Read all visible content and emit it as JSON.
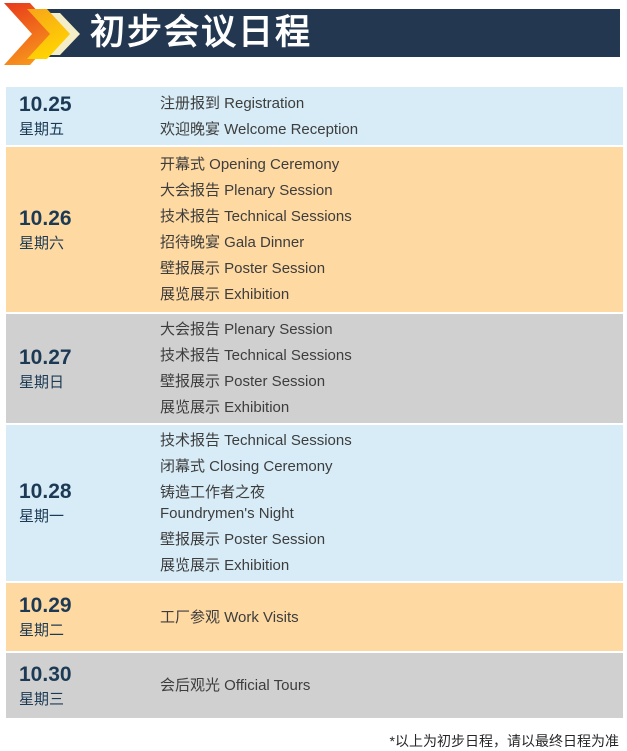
{
  "header": {
    "title": "初步会议日程"
  },
  "schedule": {
    "rows": [
      {
        "date": "10.25",
        "weekday": "星期五",
        "theme": "blue",
        "events": [
          "注册报到 Registration",
          "欢迎晚宴 Welcome Reception"
        ]
      },
      {
        "date": "10.26",
        "weekday": "星期六",
        "theme": "orange",
        "events": [
          "开幕式 Opening Ceremony",
          "大会报告 Plenary Session",
          "技术报告 Technical Sessions",
          "招待晚宴 Gala Dinner",
          "壁报展示 Poster Session",
          "展览展示 Exhibition"
        ]
      },
      {
        "date": "10.27",
        "weekday": "星期日",
        "theme": "gray",
        "events": [
          "大会报告 Plenary Session",
          "技术报告 Technical Sessions",
          "壁报展示 Poster Session",
          "展览展示 Exhibition"
        ]
      },
      {
        "date": "10.28",
        "weekday": "星期一",
        "theme": "blue",
        "events": [
          "技术报告 Technical Sessions",
          "闭幕式 Closing Ceremony",
          "铸造工作者之夜\nFoundrymen's Night",
          "壁报展示 Poster Session",
          "展览展示 Exhibition"
        ]
      },
      {
        "date": "10.29",
        "weekday": "星期二",
        "theme": "orange",
        "events": [
          "工厂参观 Work Visits"
        ]
      },
      {
        "date": "10.30",
        "weekday": "星期三",
        "theme": "gray",
        "events": [
          "会后观光 Official Tours"
        ]
      }
    ]
  },
  "footer": {
    "note": "*以上为初步日程，请以最终日程为准"
  },
  "colors": {
    "header_bg": "#233850",
    "title_text": "#ffffff",
    "row_blue": "#d7ecf7",
    "row_orange": "#fed9a2",
    "row_gray": "#d0d0d0",
    "date_text": "#1d3a55",
    "event_text": "#3d3d3d",
    "footer_text": "#262626",
    "arrow_red_top": "#e8391a",
    "arrow_red_bottom": "#f7941d",
    "arrow_yellow_top": "#f8a41a",
    "arrow_yellow_bottom": "#ffd401",
    "arrow_cream": "#f3edc8"
  }
}
